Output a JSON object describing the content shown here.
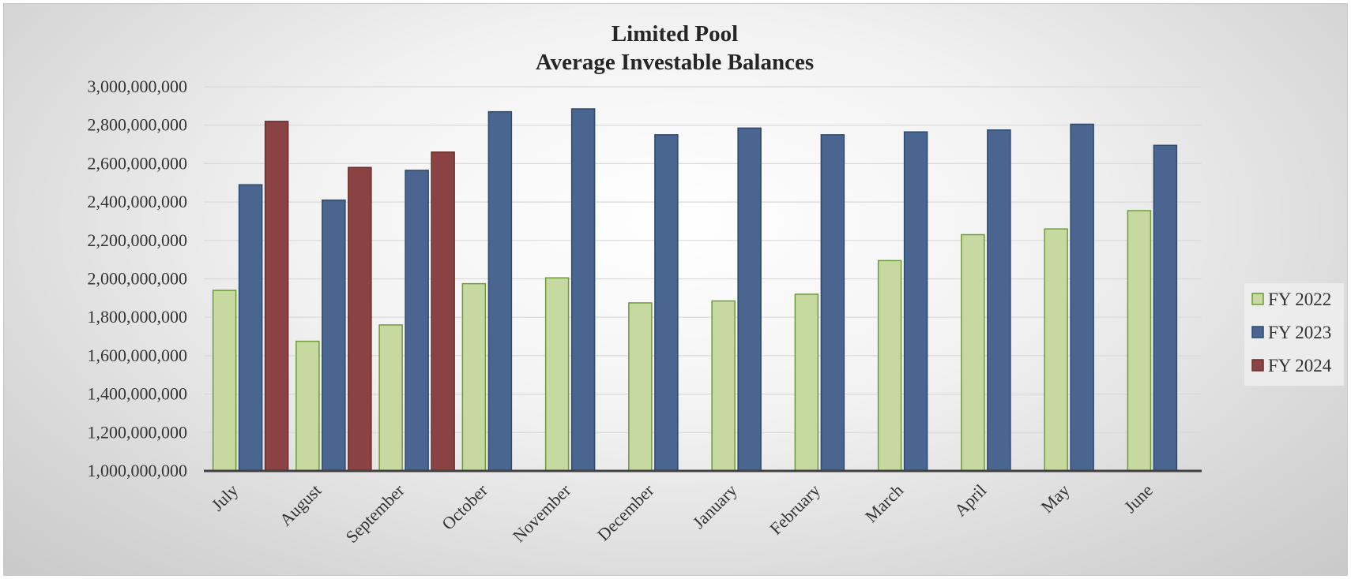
{
  "chart_data": {
    "type": "bar",
    "title": "Limited Pool",
    "subtitle": "Average Investable Balances",
    "xlabel": "",
    "ylabel": "",
    "ylim": [
      1000000000,
      3000000000
    ],
    "yticks": [
      1000000000,
      1200000000,
      1400000000,
      1600000000,
      1800000000,
      2000000000,
      2200000000,
      2400000000,
      2600000000,
      2800000000,
      3000000000
    ],
    "ytick_labels": [
      "1,000,000,000",
      "1,200,000,000",
      "1,400,000,000",
      "1,600,000,000",
      "1,800,000,000",
      "2,000,000,000",
      "2,200,000,000",
      "2,400,000,000",
      "2,600,000,000",
      "2,800,000,000",
      "3,000,000,000"
    ],
    "categories": [
      "July",
      "August",
      "September",
      "October",
      "November",
      "December",
      "January",
      "February",
      "March",
      "April",
      "May",
      "June"
    ],
    "grid": true,
    "legend_position": "right",
    "series": [
      {
        "name": "FY 2022",
        "fill": "#c6d9a0",
        "stroke": "#6f9a3a",
        "values": [
          1940000000,
          1675000000,
          1760000000,
          1975000000,
          2005000000,
          1875000000,
          1885000000,
          1920000000,
          2095000000,
          2230000000,
          2260000000,
          2355000000
        ]
      },
      {
        "name": "FY 2023",
        "fill": "#4a6690",
        "stroke": "#2e4a70",
        "values": [
          2490000000,
          2410000000,
          2565000000,
          2870000000,
          2885000000,
          2750000000,
          2785000000,
          2750000000,
          2765000000,
          2775000000,
          2805000000,
          2695000000
        ]
      },
      {
        "name": "FY 2024",
        "fill": "#8b4242",
        "stroke": "#6a2f2f",
        "values": [
          2820000000,
          2580000000,
          2660000000,
          null,
          null,
          null,
          null,
          null,
          null,
          null,
          null,
          null
        ]
      }
    ]
  }
}
